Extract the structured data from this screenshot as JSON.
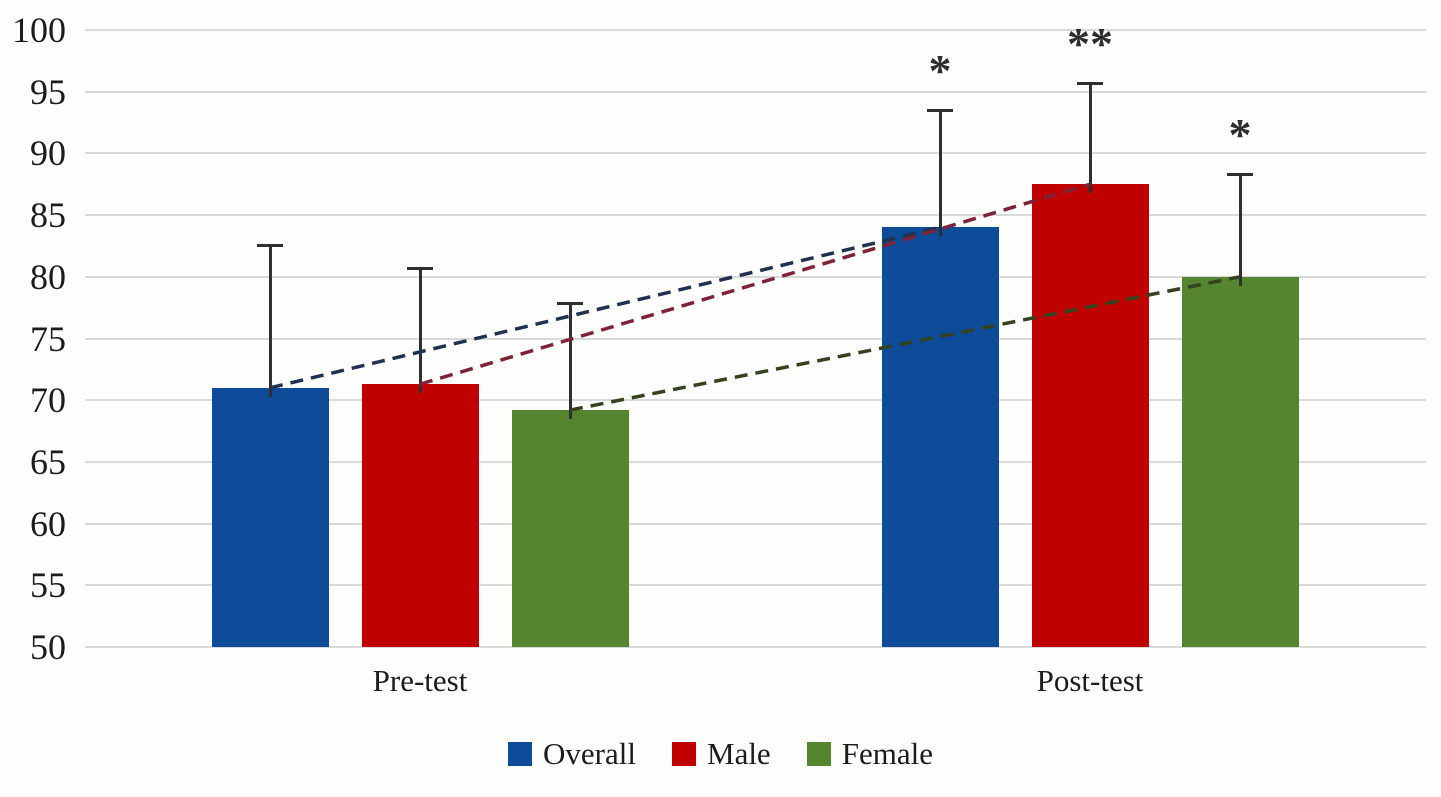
{
  "page": {
    "background": "#fdfdfc"
  },
  "chart_data": {
    "type": "bar",
    "title": "",
    "categories": [
      "Pre-test",
      "Post-test"
    ],
    "series": [
      {
        "name": "Overall",
        "color": "#0e4c99",
        "trend_line_color": "#1f3350",
        "values": [
          71,
          84
        ],
        "error_upper": [
          82.5,
          93.5
        ],
        "significance": [
          "",
          "*"
        ]
      },
      {
        "name": "Male",
        "color": "#c00000",
        "trend_line_color": "#7e2337",
        "values": [
          71.3,
          87.5
        ],
        "error_upper": [
          80.7,
          95.7
        ],
        "significance": [
          "",
          "**"
        ]
      },
      {
        "name": "Female",
        "color": "#55852f",
        "trend_line_color": "#33421f",
        "values": [
          69.2,
          80
        ],
        "error_upper": [
          77.8,
          88.3
        ],
        "significance": [
          "",
          "*"
        ]
      }
    ],
    "y_axis": {
      "min": 50,
      "max": 100,
      "step": 5,
      "ticks": [
        50,
        55,
        60,
        65,
        70,
        75,
        80,
        85,
        90,
        95,
        100
      ]
    },
    "grid": true,
    "gridline_color": "#d9d9d9",
    "error_bar_color": "#2f2f2f",
    "significance_color": "#2e2e2e",
    "trend_line_style": "dashed",
    "legend_position": "bottom"
  }
}
